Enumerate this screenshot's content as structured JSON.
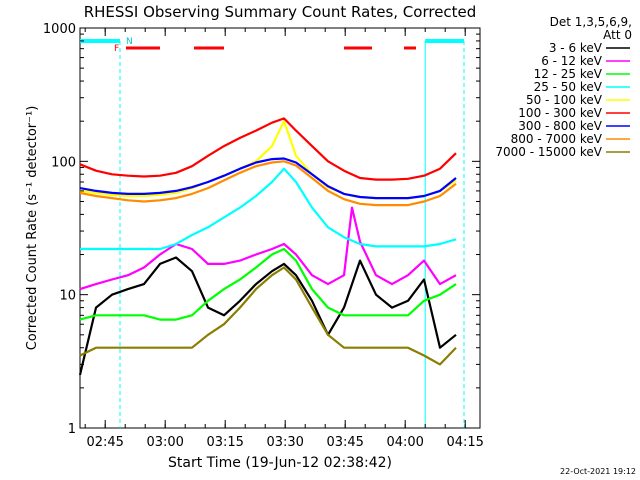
{
  "chart_data": {
    "type": "line",
    "title": "RHESSI Observing Summary Count Rates, Corrected",
    "xlabel": "Start Time (19-Jun-12 02:38:42)",
    "ylabel": "Corrected Count Rate (s⁻¹ detector⁻¹)",
    "ylim": [
      1,
      1000
    ],
    "yscale": "log",
    "xlim_minutes": [
      0,
      100
    ],
    "x_ticks": [
      {
        "label": "02:45",
        "minute": 6.3
      },
      {
        "label": "03:00",
        "minute": 21.3
      },
      {
        "label": "03:15",
        "minute": 36.3
      },
      {
        "label": "03:30",
        "minute": 51.3
      },
      {
        "label": "03:45",
        "minute": 66.3
      },
      {
        "label": "04:00",
        "minute": 81.3
      },
      {
        "label": "04:15",
        "minute": 96.3
      }
    ],
    "y_ticks": [
      {
        "label": "1",
        "value": 1
      },
      {
        "label": "10",
        "value": 10
      },
      {
        "label": "100",
        "value": 100
      },
      {
        "label": "1000",
        "value": 1000
      }
    ],
    "legend_header": [
      "Det 1,3,5,6,9,",
      "Att 0"
    ],
    "legend_position": "right",
    "series": [
      {
        "name": "3 - 6 keV",
        "color": "#000000",
        "x": [
          0,
          4,
          8,
          12,
          16,
          20,
          24,
          28,
          32,
          36,
          40,
          44,
          48,
          51,
          54,
          58,
          62,
          66,
          70,
          74,
          78,
          82,
          86,
          90,
          94
        ],
        "y": [
          2.5,
          8,
          10,
          11,
          12,
          17,
          19,
          15,
          8,
          7,
          9,
          12,
          15,
          17,
          14,
          9,
          5,
          8,
          18,
          10,
          8,
          9,
          13,
          4,
          5
        ]
      },
      {
        "name": "6 - 12 keV",
        "color": "#ff00ff",
        "x": [
          0,
          4,
          8,
          12,
          16,
          20,
          24,
          28,
          32,
          36,
          40,
          44,
          48,
          51,
          54,
          58,
          62,
          66,
          68,
          70,
          74,
          78,
          82,
          86,
          90,
          94
        ],
        "y": [
          11,
          12,
          13,
          14,
          16,
          20,
          24,
          22,
          17,
          17,
          18,
          20,
          22,
          24,
          20,
          14,
          12,
          14,
          45,
          25,
          14,
          12,
          14,
          18,
          12,
          14
        ]
      },
      {
        "name": "12 - 25 keV",
        "color": "#00ff00",
        "x": [
          0,
          4,
          8,
          12,
          16,
          20,
          24,
          28,
          32,
          36,
          40,
          44,
          48,
          51,
          54,
          58,
          62,
          66,
          70,
          74,
          78,
          82,
          86,
          90,
          94
        ],
        "y": [
          6.5,
          7,
          7,
          7,
          7,
          6.5,
          6.5,
          7,
          9,
          11,
          13,
          16,
          20,
          22,
          18,
          11,
          8,
          7,
          7,
          7,
          7,
          7,
          9,
          10,
          12
        ]
      },
      {
        "name": "25 - 50 keV",
        "color": "#00ffff",
        "x": [
          0,
          4,
          8,
          12,
          16,
          20,
          24,
          28,
          32,
          36,
          40,
          44,
          48,
          51,
          54,
          58,
          62,
          66,
          70,
          74,
          78,
          82,
          86,
          90,
          94
        ],
        "y": [
          22,
          22,
          22,
          22,
          22,
          22,
          24,
          28,
          32,
          38,
          45,
          55,
          70,
          88,
          70,
          45,
          32,
          27,
          24,
          23,
          23,
          23,
          23,
          24,
          26
        ]
      },
      {
        "name": "50 - 100 keV",
        "color": "#ffff00",
        "x": [
          0,
          4,
          8,
          12,
          16,
          20,
          24,
          28,
          32,
          36,
          40,
          44,
          48,
          51,
          54,
          58,
          62,
          66,
          70,
          74,
          78,
          82,
          86,
          90,
          94
        ],
        "y": [
          60,
          58,
          56,
          55,
          55,
          56,
          58,
          63,
          70,
          78,
          88,
          100,
          130,
          200,
          110,
          80,
          64,
          57,
          54,
          53,
          53,
          53,
          55,
          60,
          72
        ]
      },
      {
        "name": "100 - 300 keV",
        "color": "#ff0000",
        "x": [
          0,
          4,
          8,
          12,
          16,
          20,
          24,
          28,
          32,
          36,
          40,
          44,
          48,
          51,
          54,
          58,
          62,
          66,
          70,
          74,
          78,
          82,
          86,
          90,
          94
        ],
        "y": [
          95,
          85,
          80,
          78,
          77,
          78,
          82,
          92,
          110,
          130,
          150,
          170,
          195,
          210,
          170,
          130,
          100,
          85,
          75,
          73,
          73,
          74,
          78,
          88,
          115
        ]
      },
      {
        "name": "300 - 800 keV",
        "color": "#0000ff",
        "x": [
          0,
          4,
          8,
          12,
          16,
          20,
          24,
          28,
          32,
          36,
          40,
          44,
          48,
          51,
          54,
          58,
          62,
          66,
          70,
          74,
          78,
          82,
          86,
          90,
          94
        ],
        "y": [
          63,
          60,
          58,
          57,
          57,
          58,
          60,
          64,
          70,
          78,
          88,
          98,
          104,
          105,
          98,
          80,
          65,
          57,
          54,
          53,
          53,
          53,
          55,
          60,
          75
        ]
      },
      {
        "name": "800 - 7000 keV",
        "color": "#ff8c00",
        "x": [
          0,
          4,
          8,
          12,
          16,
          20,
          24,
          28,
          32,
          36,
          40,
          44,
          48,
          51,
          54,
          58,
          62,
          66,
          70,
          74,
          78,
          82,
          86,
          90,
          94
        ],
        "y": [
          58,
          55,
          53,
          51,
          50,
          51,
          53,
          57,
          63,
          72,
          82,
          92,
          98,
          100,
          93,
          75,
          60,
          52,
          48,
          47,
          47,
          47,
          50,
          55,
          68
        ]
      },
      {
        "name": "7000 - 15000 keV",
        "color": "#8b7d00",
        "x": [
          0,
          4,
          8,
          12,
          16,
          20,
          24,
          28,
          32,
          36,
          40,
          44,
          48,
          51,
          54,
          58,
          62,
          66,
          70,
          74,
          78,
          82,
          86,
          90,
          94
        ],
        "y": [
          3.5,
          4,
          4,
          4,
          4,
          4,
          4,
          4,
          5,
          6,
          8,
          11,
          14,
          16,
          13,
          8,
          5,
          4,
          4,
          4,
          4,
          4,
          3.5,
          3,
          4
        ]
      }
    ],
    "annotations": [
      {
        "text": "N",
        "color": "#00ffff"
      },
      {
        "text": "F",
        "color": "#ff0000"
      }
    ],
    "footer_date": "22-Oct-2021 19:12"
  }
}
